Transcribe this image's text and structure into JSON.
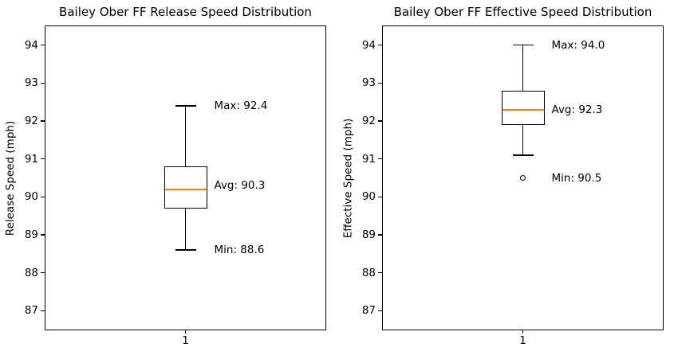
{
  "figure": {
    "background_color": "#ffffff",
    "line_color": "#000000",
    "median_color": "#ff7f0e"
  },
  "chart_data": [
    {
      "type": "box",
      "title": "Bailey Ober FF Release Speed Distribution",
      "xlabel": "",
      "ylabel": "Release Speed (mph)",
      "categories": [
        "1"
      ],
      "ylim": [
        86.5,
        94.5
      ],
      "yticks": [
        94,
        93,
        92,
        91,
        90,
        89,
        88,
        87
      ],
      "grid": false,
      "legend": false,
      "series": [
        {
          "whisker_low": 88.6,
          "q1": 89.7,
          "median": 90.2,
          "q3": 90.8,
          "whisker_high": 92.4,
          "outliers": [],
          "annotations": [
            {
              "text": "Max: 92.4",
              "value": 92.4
            },
            {
              "text": "Avg: 90.3",
              "value": 90.3
            },
            {
              "text": "Min: 88.6",
              "value": 88.6
            }
          ],
          "stats_shown": {
            "max": 92.4,
            "avg": 90.3,
            "min": 88.6
          }
        }
      ]
    },
    {
      "type": "box",
      "title": "Bailey Ober FF Effective Speed Distribution",
      "xlabel": "",
      "ylabel": "Effective Speed (mph)",
      "categories": [
        "1"
      ],
      "ylim": [
        86.5,
        94.5
      ],
      "yticks": [
        94,
        93,
        92,
        91,
        90,
        89,
        88,
        87
      ],
      "grid": false,
      "legend": false,
      "series": [
        {
          "whisker_low": 91.1,
          "q1": 91.9,
          "median": 92.3,
          "q3": 92.8,
          "whisker_high": 94.0,
          "outliers": [
            90.5
          ],
          "annotations": [
            {
              "text": "Max: 94.0",
              "value": 94.0
            },
            {
              "text": "Avg: 92.3",
              "value": 92.3
            },
            {
              "text": "Min: 90.5",
              "value": 90.5
            }
          ],
          "stats_shown": {
            "max": 94.0,
            "avg": 92.3,
            "min": 90.5
          }
        }
      ]
    }
  ]
}
